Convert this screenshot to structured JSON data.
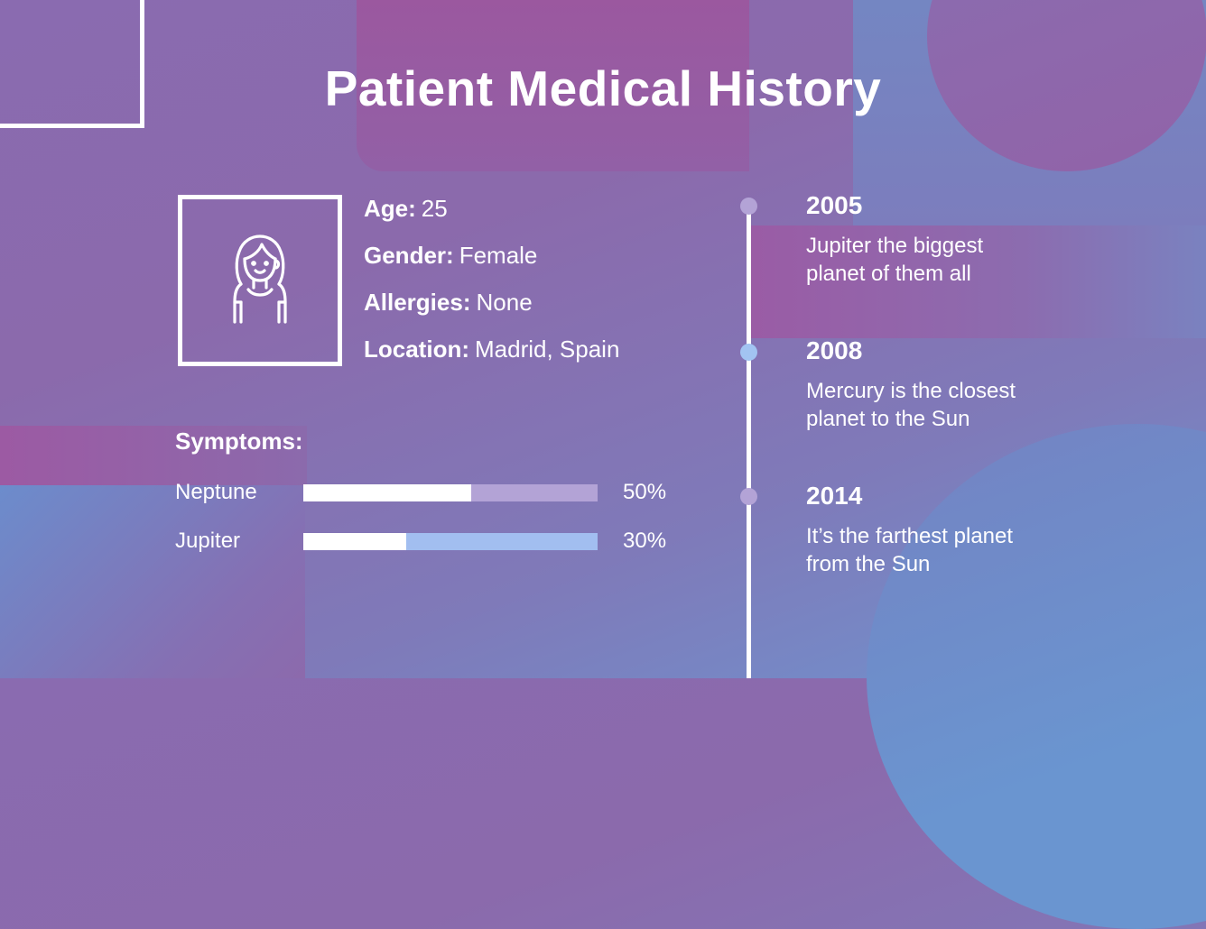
{
  "title": "Patient Medical History",
  "patient": {
    "avatar_icon": "woman-avatar-icon",
    "fields": [
      {
        "label": "Age:",
        "value": "25"
      },
      {
        "label": "Gender:",
        "value": "Female"
      },
      {
        "label": "Allergies:",
        "value": "None"
      },
      {
        "label": "Location:",
        "value": "Madrid, Spain"
      }
    ]
  },
  "symptoms": {
    "title": "Symptoms:",
    "items": [
      {
        "label": "Neptune",
        "percent": 50,
        "percent_label": "50%",
        "fill_ratio": 0.57,
        "track_color": "#b3a3d6"
      },
      {
        "label": "Jupiter",
        "percent": 30,
        "percent_label": "30%",
        "fill_ratio": 0.35,
        "track_color": "#a2bef0"
      }
    ]
  },
  "timeline": {
    "items": [
      {
        "year": "2005",
        "description": "Jupiter the biggest planet of them all",
        "line1": "Jupiter the biggest",
        "line2": "planet of them all",
        "dot_color": "#b3a3d6"
      },
      {
        "year": "2008",
        "description": "Mercury is the closest planet to the Sun",
        "line1": "Mercury is the closest",
        "line2": "planet to the Sun",
        "dot_color": "#a2c4f2"
      },
      {
        "year": "2014",
        "description": "It’s the farthest planet from the Sun",
        "line1": "It’s the farthest planet",
        "line2": "from the Sun",
        "dot_color": "#b3a3d6"
      }
    ]
  },
  "colors": {
    "text": "#ffffff",
    "bg_purple": "#8b6aac",
    "bg_pink": "#9b589f",
    "bg_blue": "#6a95d0"
  }
}
